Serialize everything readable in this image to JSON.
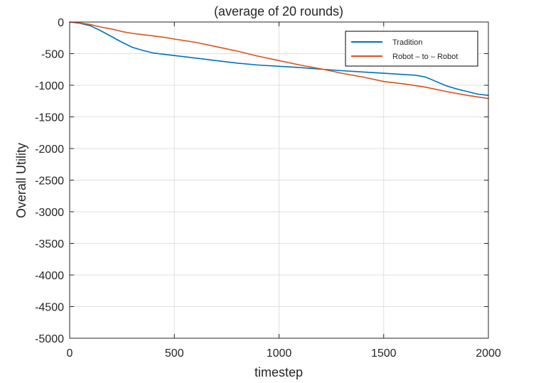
{
  "chart_data": {
    "type": "line",
    "title": "(average of 20 rounds)",
    "xlabel": "timestep",
    "ylabel": "Overall Utility",
    "xlim": [
      0,
      2000
    ],
    "ylim": [
      -5000,
      0
    ],
    "xticks": [
      0,
      500,
      1000,
      1500,
      2000
    ],
    "xtick_labels": [
      "0",
      "500",
      "1000",
      "1500",
      "2000"
    ],
    "yticks": [
      0,
      -500,
      -1000,
      -1500,
      -2000,
      -2500,
      -3000,
      -3500,
      -4000,
      -4500,
      -5000
    ],
    "ytick_labels": [
      "0",
      "-500",
      "-1000",
      "-1500",
      "-2000",
      "-2500",
      "-3000",
      "-3500",
      "-4000",
      "-4500",
      "-5000"
    ],
    "grid": true,
    "legend_position": "top-right",
    "series": [
      {
        "name": "Tradition",
        "color": "#0072BD",
        "x": [
          0,
          50,
          100,
          150,
          200,
          250,
          300,
          350,
          400,
          450,
          500,
          600,
          700,
          800,
          900,
          1000,
          1100,
          1200,
          1300,
          1400,
          1500,
          1600,
          1650,
          1700,
          1750,
          1800,
          1850,
          1900,
          1950,
          2000
        ],
        "y": [
          0,
          -20,
          -60,
          -140,
          -230,
          -320,
          -400,
          -450,
          -490,
          -510,
          -530,
          -570,
          -610,
          -650,
          -680,
          -700,
          -720,
          -745,
          -770,
          -790,
          -810,
          -830,
          -840,
          -870,
          -940,
          -1010,
          -1060,
          -1100,
          -1140,
          -1160
        ]
      },
      {
        "name": "Robot – to – Robot",
        "color": "#D95319",
        "x": [
          0,
          50,
          100,
          150,
          200,
          250,
          300,
          350,
          400,
          450,
          500,
          600,
          700,
          800,
          900,
          1000,
          1100,
          1200,
          1300,
          1400,
          1500,
          1600,
          1700,
          1800,
          1900,
          2000
        ],
        "y": [
          0,
          -15,
          -40,
          -80,
          -110,
          -150,
          -180,
          -200,
          -220,
          -240,
          -270,
          -320,
          -390,
          -460,
          -540,
          -610,
          -680,
          -740,
          -810,
          -870,
          -940,
          -980,
          -1030,
          -1100,
          -1160,
          -1210
        ]
      }
    ]
  }
}
